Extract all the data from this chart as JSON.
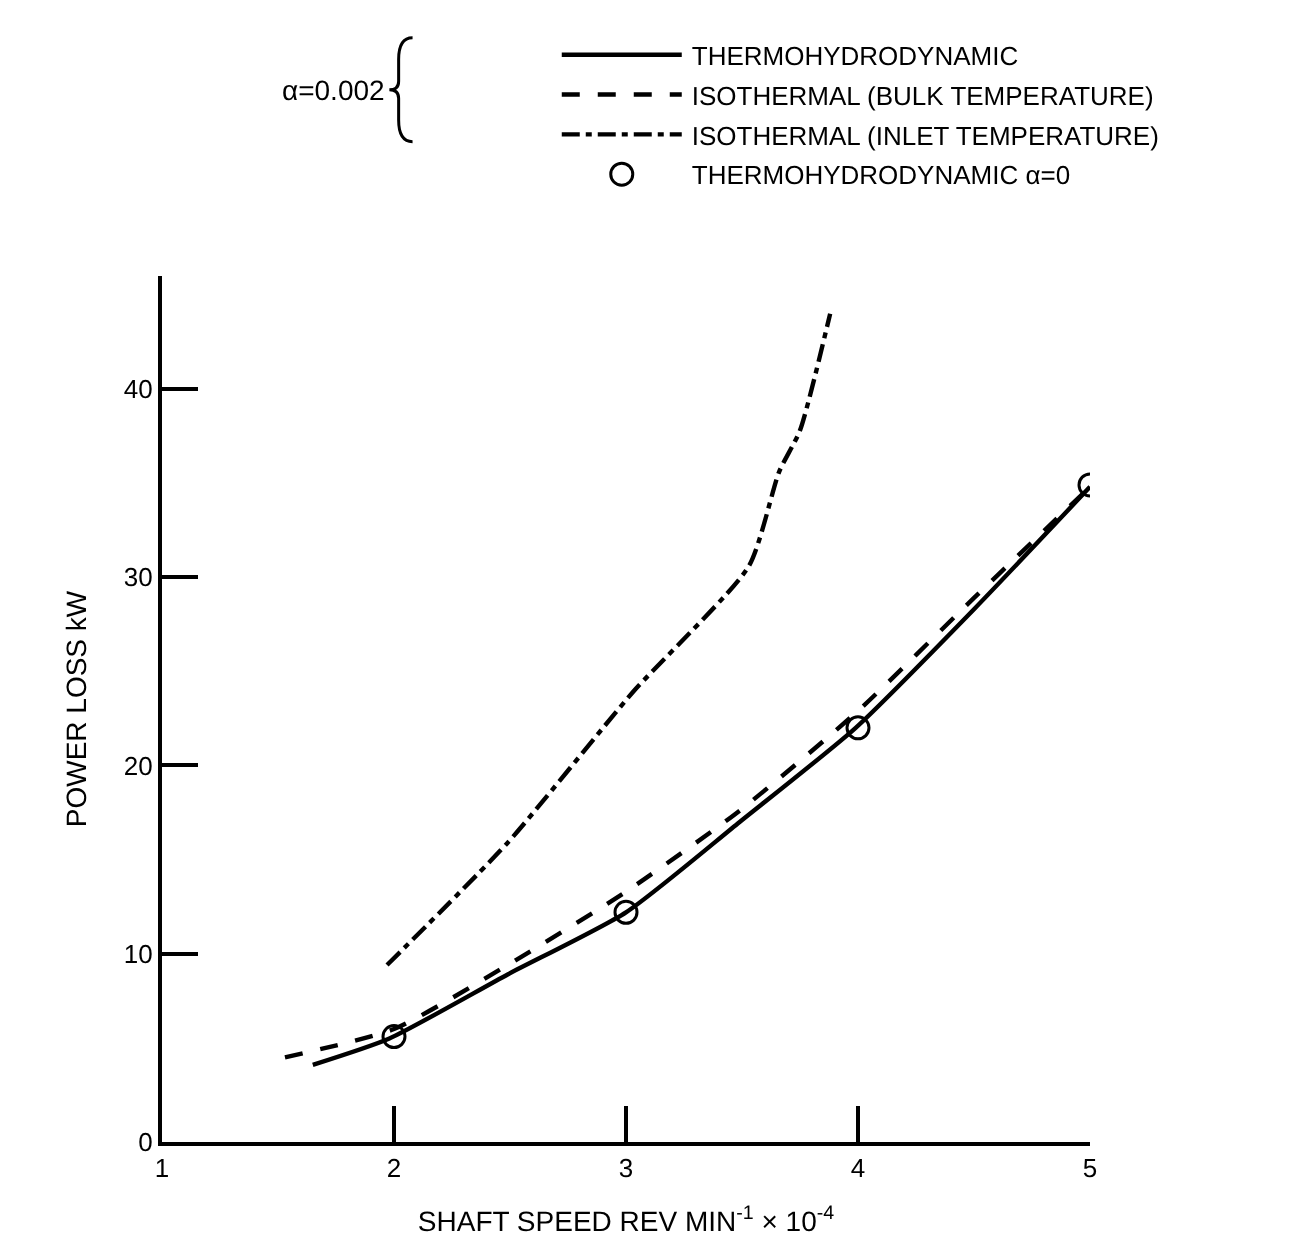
{
  "chart_data": {
    "type": "line",
    "xlabel": "SHAFT SPEED REV MIN$^{-1}$ × 10$^{-4}$",
    "ylabel": "POWER LOSS kW",
    "annotations": [
      "α=0.002"
    ],
    "xlim": [
      1,
      5
    ],
    "xticks": [
      1,
      2,
      3,
      4,
      5
    ],
    "ylim": [
      0,
      46
    ],
    "yticks": [
      0,
      10,
      20,
      30,
      40
    ],
    "legend": "top",
    "series": [
      {
        "name": "THERMOHYDRODYNAMIC",
        "color": "#000000",
        "line_style": "solid",
        "marker": "none",
        "x": [
          1.65,
          1.98,
          2.49,
          3.0,
          3.49,
          3.99,
          4.5,
          5.0
        ],
        "values": [
          4.1,
          5.5,
          8.9,
          12.2,
          17.0,
          22.0,
          28.3,
          34.8
        ]
      },
      {
        "name": "ISOTHERMAL (BULK TEMPERATURE)",
        "color": "#000000",
        "line_style": "dashed",
        "marker": "none",
        "x": [
          1.53,
          2.0,
          2.49,
          3.0,
          3.49,
          4.0,
          4.5,
          5.0
        ],
        "values": [
          4.5,
          6.0,
          9.4,
          13.3,
          17.6,
          22.9,
          28.9,
          34.8
        ]
      },
      {
        "name": "ISOTHERMAL (INLET TEMPERATURE)",
        "color": "#000000",
        "line_style": "dashdot",
        "marker": "none",
        "x": [
          1.97,
          2.49,
          3.03,
          3.53,
          3.66,
          3.75,
          3.88
        ],
        "values": [
          9.4,
          15.9,
          23.9,
          30.6,
          35.6,
          37.8,
          44.0
        ]
      },
      {
        "name": "THERMOHYDRODYNAMIC α=0",
        "type": "scatter",
        "color": "#000000",
        "marker": "circle",
        "x": [
          2,
          3,
          4,
          5
        ],
        "values": [
          5.6,
          12.2,
          22.0,
          34.9
        ]
      }
    ]
  }
}
